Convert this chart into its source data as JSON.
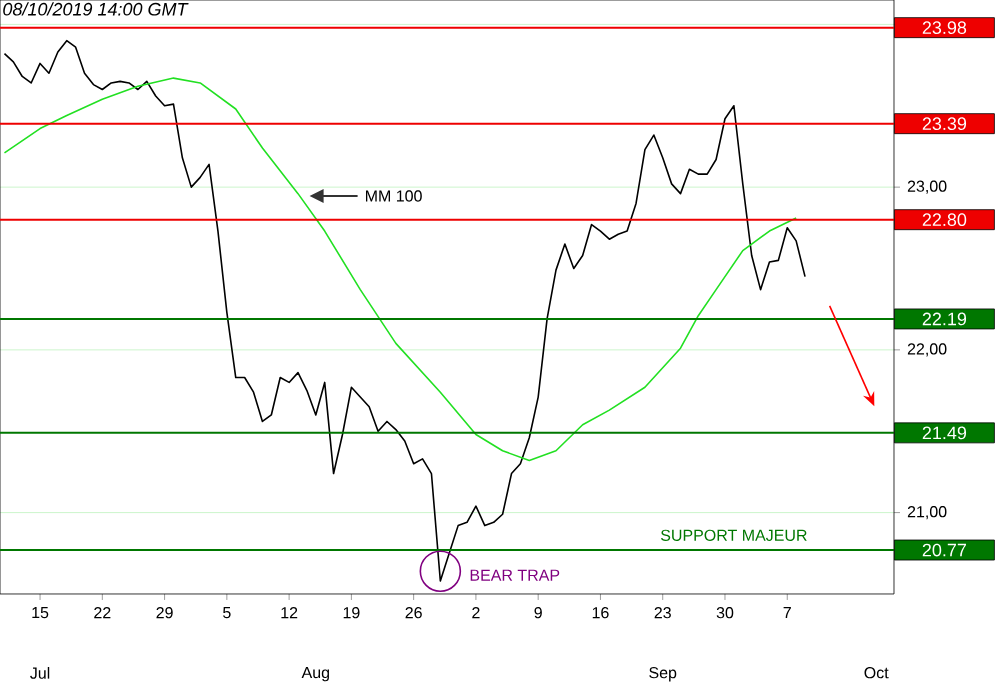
{
  "chart_data": {
    "type": "line",
    "title": "08/10/2019  14:00 GMT",
    "xlim": [
      "2019-07-10T12:00",
      "2019-10-19"
    ],
    "ylim": [
      20.5,
      24.15
    ],
    "xticks": [
      {
        "value": "2019-07-15",
        "label": "15"
      },
      {
        "value": "2019-07-22",
        "label": "22"
      },
      {
        "value": "2019-07-29",
        "label": "29"
      },
      {
        "value": "2019-08-05",
        "label": "5"
      },
      {
        "value": "2019-08-12",
        "label": "12"
      },
      {
        "value": "2019-08-19",
        "label": "19"
      },
      {
        "value": "2019-08-26",
        "label": "26"
      },
      {
        "value": "2019-09-02",
        "label": "2"
      },
      {
        "value": "2019-09-09",
        "label": "9"
      },
      {
        "value": "2019-09-16",
        "label": "16"
      },
      {
        "value": "2019-09-23",
        "label": "23"
      },
      {
        "value": "2019-09-30",
        "label": "30"
      },
      {
        "value": "2019-10-07",
        "label": "7"
      }
    ],
    "x2lim": [
      "2019-07-10T12:00",
      "2019-10-19"
    ],
    "x2ticks": [
      {
        "value": "2019-07-15",
        "label": "Jul"
      },
      {
        "value": "2019-08-15",
        "label": "Aug"
      },
      {
        "value": "2019-09-23",
        "label": "Sep"
      },
      {
        "value": "2019-10-17",
        "label": "Oct"
      }
    ],
    "yticks": [
      {
        "value": 21,
        "label": "21,00"
      },
      {
        "value": 22,
        "label": "22,00"
      },
      {
        "value": 23,
        "label": "23,00"
      },
      {
        "value": 24,
        "label": null
      }
    ],
    "grid": "y",
    "series": [
      {
        "color": "#000000",
        "x": [
          "2019-07-11",
          "2019-07-12",
          "2019-07-13",
          "2019-07-14",
          "2019-07-15",
          "2019-07-16",
          "2019-07-17",
          "2019-07-18",
          "2019-07-19",
          "2019-07-20",
          "2019-07-21",
          "2019-07-22",
          "2019-07-23",
          "2019-07-24",
          "2019-07-25",
          "2019-07-26",
          "2019-07-27",
          "2019-07-28",
          "2019-07-29",
          "2019-07-30",
          "2019-07-31",
          "2019-08-01",
          "2019-08-02",
          "2019-08-03",
          "2019-08-04",
          "2019-08-05",
          "2019-08-06",
          "2019-08-07",
          "2019-08-08",
          "2019-08-09",
          "2019-08-10",
          "2019-08-11",
          "2019-08-12",
          "2019-08-13",
          "2019-08-14",
          "2019-08-15",
          "2019-08-16",
          "2019-08-17",
          "2019-08-18",
          "2019-08-19",
          "2019-08-20",
          "2019-08-21",
          "2019-08-22",
          "2019-08-23",
          "2019-08-24",
          "2019-08-25",
          "2019-08-26",
          "2019-08-27",
          "2019-08-28",
          "2019-08-29",
          "2019-08-30",
          "2019-08-31",
          "2019-09-01",
          "2019-09-02",
          "2019-09-03",
          "2019-09-04",
          "2019-09-05",
          "2019-09-06",
          "2019-09-07",
          "2019-09-08",
          "2019-09-09",
          "2019-09-10",
          "2019-09-11",
          "2019-09-12",
          "2019-09-13",
          "2019-09-14",
          "2019-09-15",
          "2019-09-16",
          "2019-09-17",
          "2019-09-18",
          "2019-09-19",
          "2019-09-20",
          "2019-09-21",
          "2019-09-22",
          "2019-09-23",
          "2019-09-24",
          "2019-09-25",
          "2019-09-26",
          "2019-09-27",
          "2019-09-28",
          "2019-09-29",
          "2019-09-30",
          "2019-10-01",
          "2019-10-02",
          "2019-10-03",
          "2019-10-04",
          "2019-10-05",
          "2019-10-06",
          "2019-10-07",
          "2019-10-08",
          "2019-10-09"
        ],
        "values": [
          23.82,
          23.77,
          23.68,
          23.64,
          23.76,
          23.7,
          23.83,
          23.9,
          23.86,
          23.7,
          23.63,
          23.6,
          23.64,
          23.65,
          23.64,
          23.6,
          23.65,
          23.56,
          23.5,
          23.51,
          23.18,
          23.0,
          23.06,
          23.14,
          22.73,
          22.23,
          21.83,
          21.83,
          21.74,
          21.56,
          21.6,
          21.83,
          21.8,
          21.86,
          21.75,
          21.6,
          21.8,
          21.24,
          21.48,
          21.77,
          21.71,
          21.65,
          21.5,
          21.56,
          21.51,
          21.44,
          21.3,
          21.33,
          21.24,
          20.58,
          20.75,
          20.92,
          20.94,
          21.04,
          20.92,
          20.94,
          20.99,
          21.24,
          21.3,
          21.46,
          21.71,
          22.19,
          22.49,
          22.65,
          22.5,
          22.58,
          22.77,
          22.73,
          22.68,
          22.71,
          22.73,
          22.9,
          23.23,
          23.32,
          23.18,
          23.02,
          22.96,
          23.11,
          23.08,
          23.08,
          23.17,
          23.42,
          23.5,
          23.02,
          22.58,
          22.37,
          22.54,
          22.55,
          22.75,
          22.67,
          22.45
        ]
      },
      {
        "color": "#22e022",
        "x": [
          "2019-07-11",
          "2019-07-15",
          "2019-07-18",
          "2019-07-22",
          "2019-07-26",
          "2019-07-30",
          "2019-08-02",
          "2019-08-06",
          "2019-08-09",
          "2019-08-13",
          "2019-08-16",
          "2019-08-20",
          "2019-08-24",
          "2019-08-29",
          "2019-09-02",
          "2019-09-05",
          "2019-09-08",
          "2019-09-11",
          "2019-09-14",
          "2019-09-17",
          "2019-09-21",
          "2019-09-25",
          "2019-09-27",
          "2019-09-29",
          "2019-10-02",
          "2019-10-05",
          "2019-10-08"
        ],
        "values": [
          23.21,
          23.36,
          23.44,
          23.54,
          23.62,
          23.67,
          23.64,
          23.48,
          23.24,
          22.96,
          22.73,
          22.37,
          22.04,
          21.74,
          21.48,
          21.38,
          21.32,
          21.38,
          21.54,
          21.63,
          21.77,
          22.01,
          22.21,
          22.37,
          22.61,
          22.73,
          22.81
        ]
      }
    ],
    "ref_lines": [
      {
        "axis": "y",
        "value": 23.98,
        "label": "23.98",
        "color": "#ee0000"
      },
      {
        "axis": "y",
        "value": 23.39,
        "label": "23.39",
        "color": "#ee0000"
      },
      {
        "axis": "y",
        "value": 22.8,
        "label": "22.80",
        "color": "#ee0000"
      },
      {
        "axis": "y",
        "value": 22.19,
        "label": "22.19",
        "color": "#007700"
      },
      {
        "axis": "y",
        "value": 21.49,
        "label": "21.49",
        "color": "#007700"
      },
      {
        "axis": "y",
        "value": 20.77,
        "label": "20.77",
        "color": "#007700"
      }
    ],
    "annotations": [
      "MM 100",
      {
        "text": "SUPPORT MAJEUR",
        "x": "2019-10-01",
        "y": 20.77
      },
      {
        "text": "BEAR TRAP",
        "x": "2019-08-29",
        "y": 20.64
      }
    ]
  }
}
